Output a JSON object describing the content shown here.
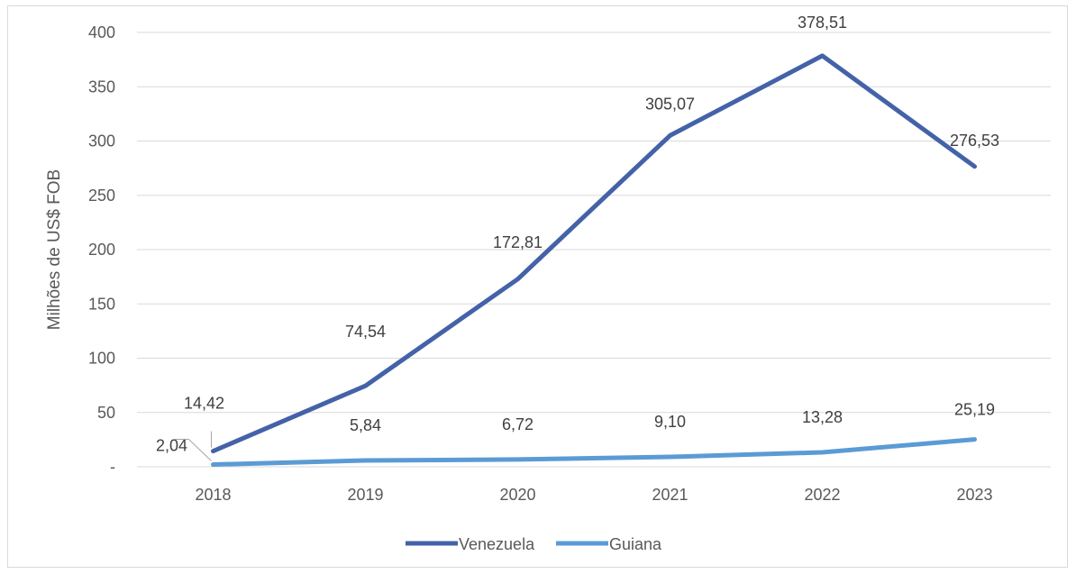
{
  "chart_data": {
    "type": "line",
    "title": "",
    "xlabel": "",
    "ylabel": "Milhões de US$ FOB",
    "categories": [
      "2018",
      "2019",
      "2020",
      "2021",
      "2022",
      "2023"
    ],
    "ylim": [
      0,
      400
    ],
    "yticks": [
      {
        "value": 0,
        "label": "-"
      },
      {
        "value": 50,
        "label": "50"
      },
      {
        "value": 100,
        "label": "100"
      },
      {
        "value": 150,
        "label": "150"
      },
      {
        "value": 200,
        "label": "200"
      },
      {
        "value": 250,
        "label": "250"
      },
      {
        "value": 300,
        "label": "300"
      },
      {
        "value": 350,
        "label": "350"
      },
      {
        "value": 400,
        "label": "400"
      }
    ],
    "grid": true,
    "legend_position": "bottom",
    "series": [
      {
        "name": "Venezuela",
        "color": "#4462a8",
        "values": [
          14.42,
          74.54,
          172.81,
          305.07,
          378.51,
          276.53
        ],
        "labels": [
          "14,42",
          "74,54",
          "172,81",
          "305,07",
          "378,51",
          "276,53"
        ]
      },
      {
        "name": "Guiana",
        "color": "#5b9bd5",
        "values": [
          2.04,
          5.84,
          6.72,
          9.1,
          13.28,
          25.19
        ],
        "labels": [
          "2,04",
          "5,84",
          "6,72",
          "9,10",
          "13,28",
          "25,19"
        ]
      }
    ]
  }
}
